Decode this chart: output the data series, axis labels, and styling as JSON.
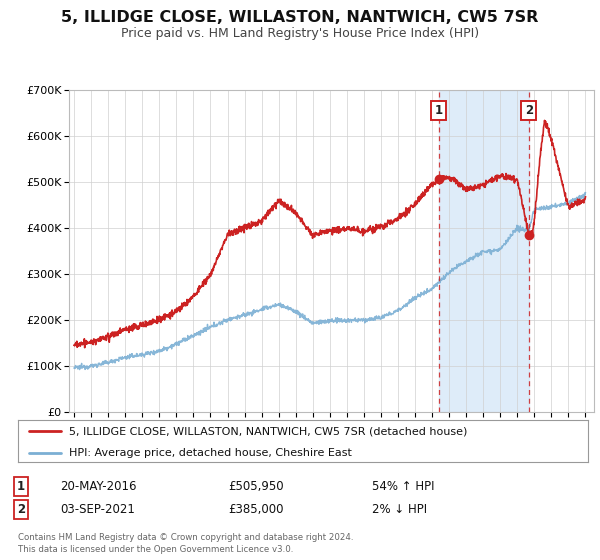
{
  "title": "5, ILLIDGE CLOSE, WILLASTON, NANTWICH, CW5 7SR",
  "subtitle": "Price paid vs. HM Land Registry's House Price Index (HPI)",
  "ylim": [
    0,
    700000
  ],
  "yticks": [
    0,
    100000,
    200000,
    300000,
    400000,
    500000,
    600000,
    700000
  ],
  "ytick_labels": [
    "£0",
    "£100K",
    "£200K",
    "£300K",
    "£400K",
    "£500K",
    "£600K",
    "£700K"
  ],
  "xlim_start": 1994.7,
  "xlim_end": 2025.5,
  "xtick_years": [
    1995,
    1996,
    1997,
    1998,
    1999,
    2000,
    2001,
    2002,
    2003,
    2004,
    2005,
    2006,
    2007,
    2008,
    2009,
    2010,
    2011,
    2012,
    2013,
    2014,
    2015,
    2016,
    2017,
    2018,
    2019,
    2020,
    2021,
    2022,
    2023,
    2024,
    2025
  ],
  "hpi_color": "#7bafd4",
  "price_color": "#cc2222",
  "sale1_x": 2016.38,
  "sale1_y": 505950,
  "sale2_x": 2021.67,
  "sale2_y": 385000,
  "legend_line1": "5, ILLIDGE CLOSE, WILLASTON, NANTWICH, CW5 7SR (detached house)",
  "legend_line2": "HPI: Average price, detached house, Cheshire East",
  "note1_num": "1",
  "note1_date": "20-MAY-2016",
  "note1_price": "£505,950",
  "note1_pct": "54% ↑ HPI",
  "note2_num": "2",
  "note2_date": "03-SEP-2021",
  "note2_price": "£385,000",
  "note2_pct": "2% ↓ HPI",
  "footer": "Contains HM Land Registry data © Crown copyright and database right 2024.\nThis data is licensed under the Open Government Licence v3.0.",
  "bg_color": "#ffffff",
  "plot_bg_color": "#ffffff",
  "shade_color": "#d0e4f7"
}
